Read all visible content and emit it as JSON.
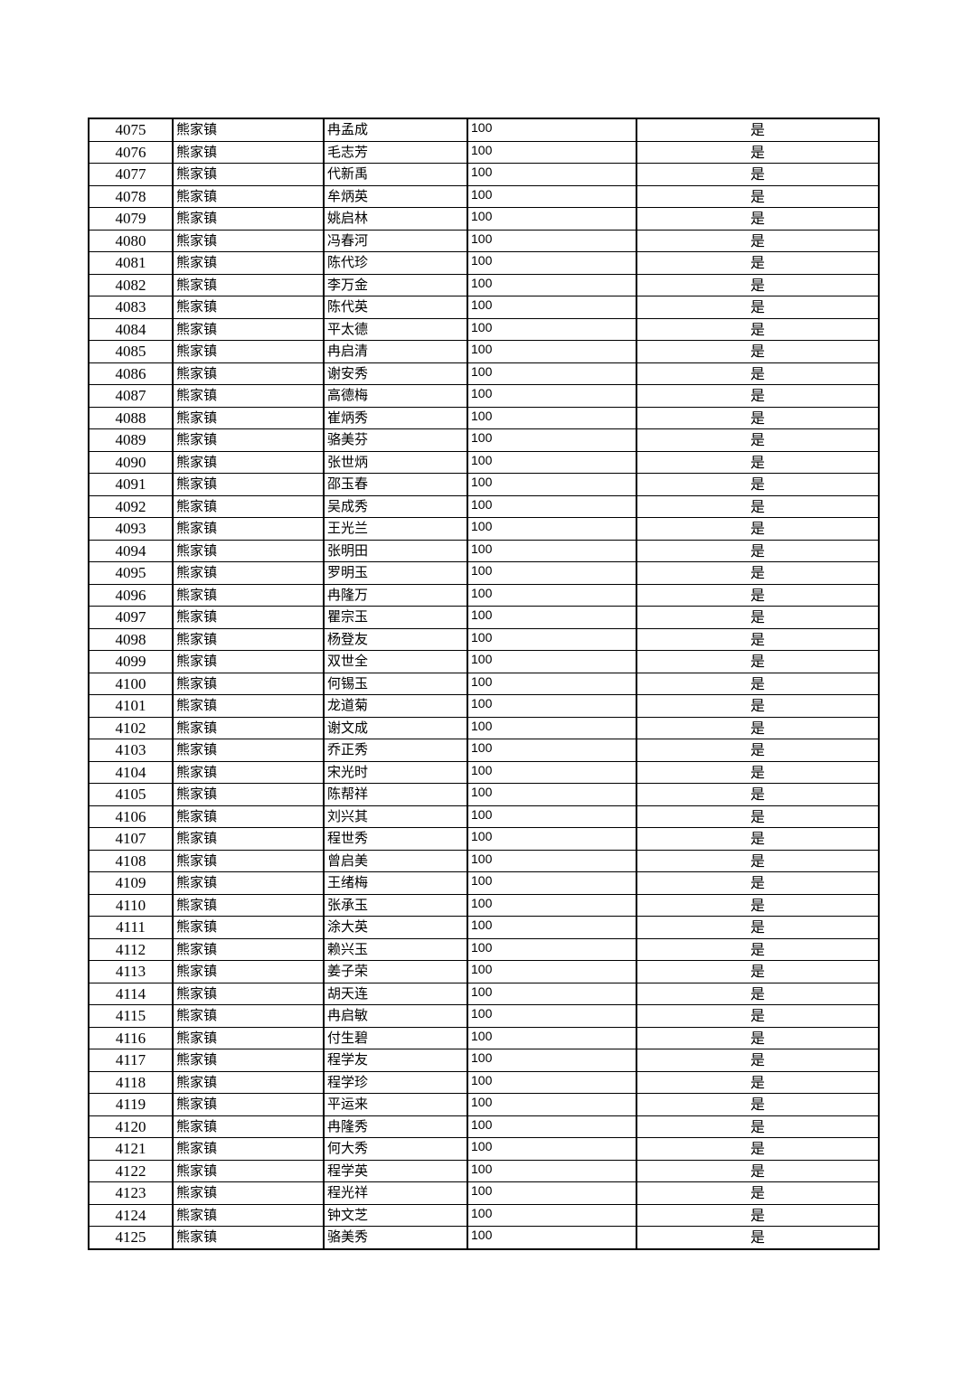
{
  "table": {
    "rows": [
      [
        "4075",
        "熊家镇",
        "冉孟成",
        "100",
        "是"
      ],
      [
        "4076",
        "熊家镇",
        "毛志芳",
        "100",
        "是"
      ],
      [
        "4077",
        "熊家镇",
        "代新禹",
        "100",
        "是"
      ],
      [
        "4078",
        "熊家镇",
        "牟炳英",
        "100",
        "是"
      ],
      [
        "4079",
        "熊家镇",
        "姚启林",
        "100",
        "是"
      ],
      [
        "4080",
        "熊家镇",
        "冯春河",
        "100",
        "是"
      ],
      [
        "4081",
        "熊家镇",
        "陈代珍",
        "100",
        "是"
      ],
      [
        "4082",
        "熊家镇",
        "李万金",
        "100",
        "是"
      ],
      [
        "4083",
        "熊家镇",
        "陈代英",
        "100",
        "是"
      ],
      [
        "4084",
        "熊家镇",
        "平太德",
        "100",
        "是"
      ],
      [
        "4085",
        "熊家镇",
        "冉启清",
        "100",
        "是"
      ],
      [
        "4086",
        "熊家镇",
        "谢安秀",
        "100",
        "是"
      ],
      [
        "4087",
        "熊家镇",
        "高德梅",
        "100",
        "是"
      ],
      [
        "4088",
        "熊家镇",
        "崔炳秀",
        "100",
        "是"
      ],
      [
        "4089",
        "熊家镇",
        "骆美芬",
        "100",
        "是"
      ],
      [
        "4090",
        "熊家镇",
        "张世炳",
        "100",
        "是"
      ],
      [
        "4091",
        "熊家镇",
        "邵玉春",
        "100",
        "是"
      ],
      [
        "4092",
        "熊家镇",
        "吴成秀",
        "100",
        "是"
      ],
      [
        "4093",
        "熊家镇",
        "王光兰",
        "100",
        "是"
      ],
      [
        "4094",
        "熊家镇",
        "张明田",
        "100",
        "是"
      ],
      [
        "4095",
        "熊家镇",
        "罗明玉",
        "100",
        "是"
      ],
      [
        "4096",
        "熊家镇",
        "冉隆万",
        "100",
        "是"
      ],
      [
        "4097",
        "熊家镇",
        "瞿宗玉",
        "100",
        "是"
      ],
      [
        "4098",
        "熊家镇",
        "杨登友",
        "100",
        "是"
      ],
      [
        "4099",
        "熊家镇",
        "双世全",
        "100",
        "是"
      ],
      [
        "4100",
        "熊家镇",
        "何锡玉",
        "100",
        "是"
      ],
      [
        "4101",
        "熊家镇",
        "龙道菊",
        "100",
        "是"
      ],
      [
        "4102",
        "熊家镇",
        "谢文成",
        "100",
        "是"
      ],
      [
        "4103",
        "熊家镇",
        "乔正秀",
        "100",
        "是"
      ],
      [
        "4104",
        "熊家镇",
        "宋光时",
        "100",
        "是"
      ],
      [
        "4105",
        "熊家镇",
        "陈帮祥",
        "100",
        "是"
      ],
      [
        "4106",
        "熊家镇",
        "刘兴其",
        "100",
        "是"
      ],
      [
        "4107",
        "熊家镇",
        "程世秀",
        "100",
        "是"
      ],
      [
        "4108",
        "熊家镇",
        "曾启美",
        "100",
        "是"
      ],
      [
        "4109",
        "熊家镇",
        "王绪梅",
        "100",
        "是"
      ],
      [
        "4110",
        "熊家镇",
        "张承玉",
        "100",
        "是"
      ],
      [
        "4111",
        "熊家镇",
        "涂大英",
        "100",
        "是"
      ],
      [
        "4112",
        "熊家镇",
        "赖兴玉",
        "100",
        "是"
      ],
      [
        "4113",
        "熊家镇",
        "姜子荣",
        "100",
        "是"
      ],
      [
        "4114",
        "熊家镇",
        "胡天连",
        "100",
        "是"
      ],
      [
        "4115",
        "熊家镇",
        "冉启敏",
        "100",
        "是"
      ],
      [
        "4116",
        "熊家镇",
        "付生碧",
        "100",
        "是"
      ],
      [
        "4117",
        "熊家镇",
        "程学友",
        "100",
        "是"
      ],
      [
        "4118",
        "熊家镇",
        "程学珍",
        "100",
        "是"
      ],
      [
        "4119",
        "熊家镇",
        "平运来",
        "100",
        "是"
      ],
      [
        "4120",
        "熊家镇",
        "冉隆秀",
        "100",
        "是"
      ],
      [
        "4121",
        "熊家镇",
        "何大秀",
        "100",
        "是"
      ],
      [
        "4122",
        "熊家镇",
        "程学英",
        "100",
        "是"
      ],
      [
        "4123",
        "熊家镇",
        "程光祥",
        "100",
        "是"
      ],
      [
        "4124",
        "熊家镇",
        "钟文芝",
        "100",
        "是"
      ],
      [
        "4125",
        "熊家镇",
        "骆美秀",
        "100",
        "是"
      ]
    ]
  }
}
